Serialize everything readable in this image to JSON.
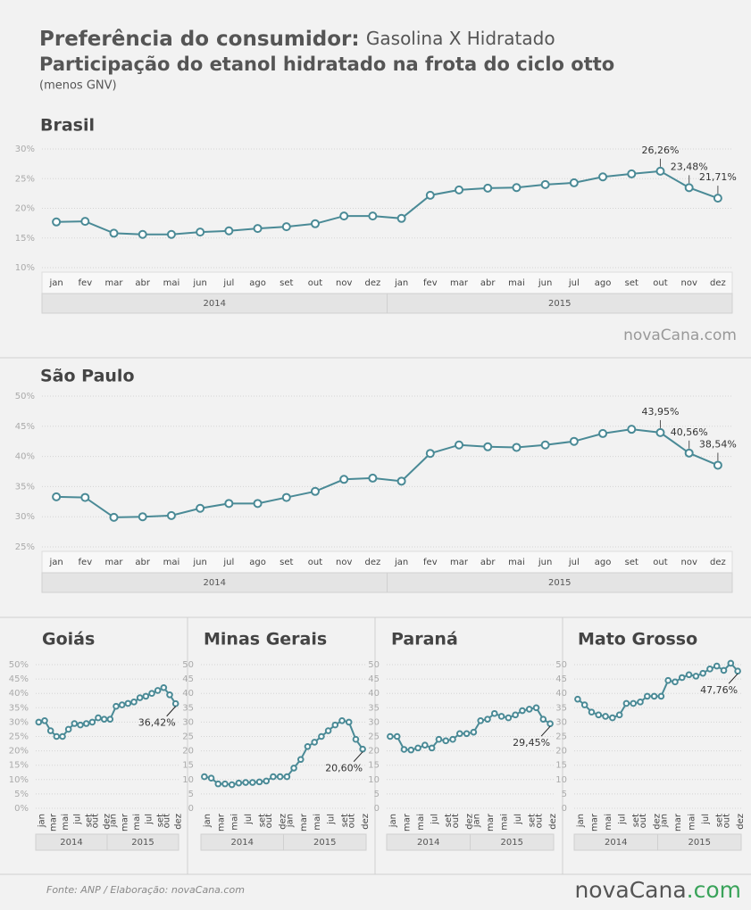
{
  "header": {
    "title_bold": "Preferência do consumidor:",
    "title_rest": "Gasolina X Hidratado",
    "subtitle": "Participação do etanol hidratado na frota do ciclo otto",
    "note": "(menos GNV)"
  },
  "chart_data": [
    {
      "type": "line",
      "title": "Brasil",
      "watermark": "novaCana.com",
      "categories": [
        "jan",
        "fev",
        "mar",
        "abr",
        "mai",
        "jun",
        "jul",
        "ago",
        "set",
        "out",
        "nov",
        "dez",
        "jan",
        "fev",
        "mar",
        "abr",
        "mai",
        "jun",
        "jul",
        "ago",
        "set",
        "out",
        "nov",
        "dez"
      ],
      "x_groups": [
        "2014",
        "2015"
      ],
      "values": [
        17.7,
        17.8,
        15.8,
        15.6,
        15.6,
        16.0,
        16.2,
        16.6,
        16.9,
        17.4,
        18.7,
        18.7,
        18.3,
        22.2,
        23.1,
        23.4,
        23.5,
        24.0,
        24.3,
        25.3,
        25.8,
        26.26,
        23.48,
        21.71
      ],
      "value_labels": [
        null,
        null,
        null,
        null,
        null,
        null,
        null,
        null,
        null,
        null,
        null,
        null,
        null,
        null,
        null,
        null,
        null,
        null,
        null,
        null,
        null,
        "26,26%",
        "23,48%",
        "21,71%"
      ],
      "color": "#4a8a96",
      "ylim": [
        10,
        30
      ],
      "yticks": [
        {
          "value": 10,
          "label": "10%"
        },
        {
          "value": 15,
          "label": "15%"
        },
        {
          "value": 20,
          "label": "20%"
        },
        {
          "value": 25,
          "label": "25%"
        },
        {
          "value": 30,
          "label": "30%"
        }
      ],
      "grid": true
    },
    {
      "type": "line",
      "title": "São Paulo",
      "categories": [
        "jan",
        "fev",
        "mar",
        "abr",
        "mai",
        "jun",
        "jul",
        "ago",
        "set",
        "out",
        "nov",
        "dez",
        "jan",
        "fev",
        "mar",
        "abr",
        "mai",
        "jun",
        "jul",
        "ago",
        "set",
        "out",
        "nov",
        "dez"
      ],
      "x_groups": [
        "2014",
        "2015"
      ],
      "values": [
        33.3,
        33.2,
        29.9,
        30.0,
        30.2,
        31.4,
        32.2,
        32.2,
        33.2,
        34.2,
        36.2,
        36.4,
        35.9,
        40.5,
        41.9,
        41.6,
        41.5,
        41.9,
        42.5,
        43.8,
        44.5,
        43.95,
        40.56,
        38.54
      ],
      "value_labels": [
        null,
        null,
        null,
        null,
        null,
        null,
        null,
        null,
        null,
        null,
        null,
        null,
        null,
        null,
        null,
        null,
        null,
        null,
        null,
        null,
        null,
        "43,95%",
        "40,56%",
        "38,54%"
      ],
      "color": "#4a8a96",
      "ylim": [
        25,
        50
      ],
      "yticks": [
        {
          "value": 25,
          "label": "25%"
        },
        {
          "value": 30,
          "label": "30%"
        },
        {
          "value": 35,
          "label": "35%"
        },
        {
          "value": 40,
          "label": "40%"
        },
        {
          "value": 45,
          "label": "45%"
        },
        {
          "value": 50,
          "label": "50%"
        }
      ],
      "grid": true
    },
    {
      "type": "line",
      "title": "Goiás",
      "categories": [
        "jan",
        null,
        "mar",
        null,
        "mai",
        null,
        "jul",
        null,
        "set",
        "out",
        null,
        "dez",
        "jan",
        null,
        "mar",
        null,
        "mai",
        null,
        "jul",
        null,
        "set",
        "out",
        null,
        "dez"
      ],
      "x_groups": [
        "2014",
        "2015"
      ],
      "values": [
        30,
        30.5,
        27,
        25,
        25,
        27.5,
        29.5,
        29,
        29.5,
        30,
        31.5,
        31,
        31,
        35.5,
        36,
        36.5,
        37,
        38.5,
        39,
        40,
        41,
        42,
        39.5,
        36.42
      ],
      "value_labels": [
        null,
        null,
        null,
        null,
        null,
        null,
        null,
        null,
        null,
        null,
        null,
        null,
        null,
        null,
        null,
        null,
        null,
        null,
        null,
        null,
        null,
        null,
        null,
        "36,42%"
      ],
      "color": "#4a8a96",
      "ylim": [
        0,
        50
      ],
      "yticks": [
        {
          "value": 0,
          "label": "0%"
        },
        {
          "value": 5,
          "label": "5%"
        },
        {
          "value": 10,
          "label": "10%"
        },
        {
          "value": 15,
          "label": "15%"
        },
        {
          "value": 20,
          "label": "20%"
        },
        {
          "value": 25,
          "label": "25%"
        },
        {
          "value": 30,
          "label": "30%"
        },
        {
          "value": 35,
          "label": "35%"
        },
        {
          "value": 40,
          "label": "40%"
        },
        {
          "value": 45,
          "label": "45%"
        },
        {
          "value": 50,
          "label": "50%"
        }
      ],
      "grid": true
    },
    {
      "type": "line",
      "title": "Minas Gerais",
      "categories": [
        "jan",
        null,
        "mar",
        null,
        "mai",
        null,
        "jul",
        null,
        "set",
        "out",
        null,
        "dez",
        "jan",
        null,
        "mar",
        null,
        "mai",
        null,
        "jul",
        null,
        "set",
        "out",
        null,
        "dez"
      ],
      "x_groups": [
        "2014",
        "2015"
      ],
      "values": [
        11,
        10.5,
        8.5,
        8.5,
        8.2,
        8.8,
        9,
        9,
        9.2,
        9.5,
        11,
        11,
        11,
        14,
        17,
        21.5,
        23,
        25,
        27,
        29,
        30.5,
        30,
        24,
        20.6
      ],
      "value_labels": [
        null,
        null,
        null,
        null,
        null,
        null,
        null,
        null,
        null,
        null,
        null,
        null,
        null,
        null,
        null,
        null,
        null,
        null,
        null,
        null,
        null,
        null,
        null,
        "20,60%"
      ],
      "color": "#4a8a96",
      "ylim": [
        0,
        50
      ],
      "yticks": [
        0,
        5,
        10,
        15,
        20,
        25,
        30,
        35,
        40,
        45,
        50
      ],
      "grid": true
    },
    {
      "type": "line",
      "title": "Paraná",
      "categories": [
        "jan",
        null,
        "mar",
        null,
        "mai",
        null,
        "jul",
        null,
        "set",
        "out",
        null,
        "dez",
        "jan",
        null,
        "mar",
        null,
        "mai",
        null,
        "jul",
        null,
        "set",
        "out",
        null,
        "dez"
      ],
      "x_groups": [
        "2014",
        "2015"
      ],
      "values": [
        25,
        25,
        20.5,
        20.3,
        21,
        22,
        21,
        24,
        23.5,
        24,
        26,
        26,
        26.5,
        30.5,
        31,
        33,
        32,
        31.5,
        32.5,
        34,
        34.5,
        35,
        31,
        29.45
      ],
      "value_labels": [
        null,
        null,
        null,
        null,
        null,
        null,
        null,
        null,
        null,
        null,
        null,
        null,
        null,
        null,
        null,
        null,
        null,
        null,
        null,
        null,
        null,
        null,
        null,
        "29,45%"
      ],
      "color": "#4a8a96",
      "ylim": [
        0,
        50
      ],
      "yticks": [
        0,
        5,
        10,
        15,
        20,
        25,
        30,
        35,
        40,
        45,
        50
      ],
      "grid": true
    },
    {
      "type": "line",
      "title": "Mato Grosso",
      "categories": [
        "jan",
        null,
        "mar",
        null,
        "mai",
        null,
        "jul",
        null,
        "set",
        "out",
        null,
        "dez",
        "jan",
        null,
        "mar",
        null,
        "mai",
        null,
        "jul",
        null,
        "set",
        "out",
        null,
        "dez"
      ],
      "x_groups": [
        "2014",
        "2015"
      ],
      "values": [
        38,
        36,
        33.5,
        32.5,
        32,
        31.5,
        32.5,
        36.5,
        36.5,
        37,
        39,
        39,
        39,
        44.5,
        44,
        45.5,
        46.5,
        46,
        47,
        48.5,
        49.5,
        48,
        50.5,
        47.76
      ],
      "value_labels": [
        null,
        null,
        null,
        null,
        null,
        null,
        null,
        null,
        null,
        null,
        null,
        null,
        null,
        null,
        null,
        null,
        null,
        null,
        null,
        null,
        null,
        null,
        null,
        "47,76%"
      ],
      "color": "#4a8a96",
      "ylim": [
        0,
        50
      ],
      "yticks": [
        0,
        5,
        10,
        15,
        20,
        25,
        30,
        35,
        40,
        45,
        50
      ],
      "grid": true
    }
  ],
  "footer": {
    "source": "Fonte:  ANP / Elaboração:  novaCana.com",
    "logo": "novaCana",
    "logo_suffix": ".com"
  }
}
